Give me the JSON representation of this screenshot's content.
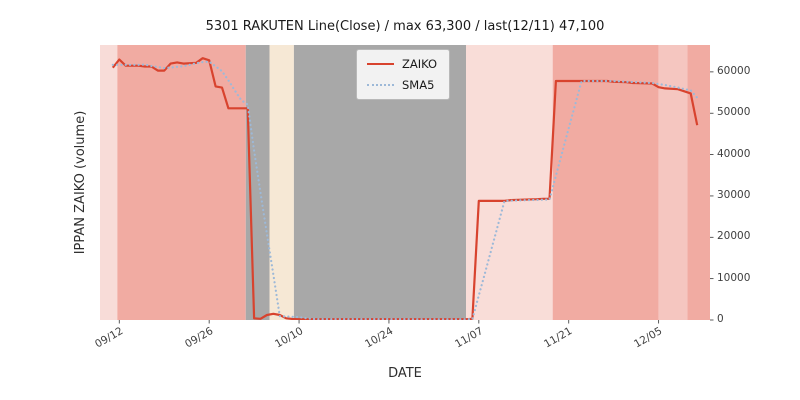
{
  "chart_data": {
    "type": "line",
    "title": "5301 RAKUTEN Line(Close) / max 63,300 / last(12/11) 47,100",
    "xlabel": "DATE",
    "ylabel": "IPPAN ZAIKO (volume)",
    "x_tick_labels": [
      "09/12",
      "09/26",
      "10/10",
      "10/24",
      "11/07",
      "11/21",
      "12/05"
    ],
    "x_tick_days": [
      1,
      15,
      29,
      43,
      57,
      71,
      85
    ],
    "y_tick_labels": [
      "0",
      "10000",
      "20000",
      "30000",
      "40000",
      "50000",
      "60000"
    ],
    "y_tick_values": [
      0,
      10000,
      20000,
      30000,
      40000,
      50000,
      60000
    ],
    "x_domain": [
      -2,
      93
    ],
    "x_start_date": "09/11",
    "ylim": [
      0,
      66500
    ],
    "max_value": 63300,
    "last": {
      "date": "12/11",
      "value": 47100
    },
    "legend": {
      "position": "upper center",
      "entries": [
        "ZAIKO",
        "SMA5"
      ]
    },
    "colors": {
      "zaiko_line": "#d8432e",
      "sma5_line": "#9db9d8",
      "band_salmon": "#f1aba2",
      "band_light_pink": "#f8dcd8",
      "band_pale_pink": "#f9ddd8",
      "band_mid_pink": "#f5c6c0",
      "band_gray": "#a8a8a8",
      "band_cream": "#f6e8d5",
      "tick_text": "#404040"
    },
    "background_bands": [
      {
        "start_day": -2,
        "end_day": 0.7,
        "color": "#f8dcd8"
      },
      {
        "start_day": 0.7,
        "end_day": 20.7,
        "color": "#f1aba2"
      },
      {
        "start_day": 20.7,
        "end_day": 24.4,
        "color": "#a8a8a8"
      },
      {
        "start_day": 24.4,
        "end_day": 28.2,
        "color": "#f6e8d5"
      },
      {
        "start_day": 28.2,
        "end_day": 55,
        "color": "#a8a8a8"
      },
      {
        "start_day": 55,
        "end_day": 68.5,
        "color": "#f9ddd8"
      },
      {
        "start_day": 68.5,
        "end_day": 85,
        "color": "#f1aba2"
      },
      {
        "start_day": 85,
        "end_day": 89.5,
        "color": "#f5c6c0"
      },
      {
        "start_day": 89.5,
        "end_day": 93,
        "color": "#f1aba2"
      }
    ],
    "series": [
      {
        "name": "ZAIKO",
        "style": "solid",
        "color": "#d8432e",
        "points": [
          [
            0,
            61000
          ],
          [
            1,
            63000
          ],
          [
            2,
            61500
          ],
          [
            4,
            61500
          ],
          [
            5,
            61300
          ],
          [
            6,
            61300
          ],
          [
            7,
            60300
          ],
          [
            8,
            60300
          ],
          [
            9,
            62000
          ],
          [
            10,
            62300
          ],
          [
            11,
            62000
          ],
          [
            13,
            62200
          ],
          [
            14,
            63300
          ],
          [
            15,
            62800
          ],
          [
            16,
            56500
          ],
          [
            17,
            56200
          ],
          [
            18,
            51200
          ],
          [
            21,
            51200
          ],
          [
            22,
            400
          ],
          [
            23,
            300
          ],
          [
            24,
            1200
          ],
          [
            25,
            1500
          ],
          [
            26,
            1200
          ],
          [
            27,
            400
          ],
          [
            28,
            250
          ],
          [
            29,
            200
          ],
          [
            55,
            200
          ],
          [
            56,
            300
          ],
          [
            57,
            28800
          ],
          [
            61,
            28800
          ],
          [
            62,
            29000
          ],
          [
            66,
            29200
          ],
          [
            67,
            29300
          ],
          [
            68,
            29300
          ],
          [
            69,
            57800
          ],
          [
            77,
            57800
          ],
          [
            78,
            57600
          ],
          [
            80,
            57500
          ],
          [
            81,
            57300
          ],
          [
            84,
            57200
          ],
          [
            85,
            56300
          ],
          [
            86,
            56000
          ],
          [
            88,
            55800
          ],
          [
            89,
            55300
          ],
          [
            90,
            54800
          ],
          [
            91,
            47100
          ]
        ]
      },
      {
        "name": "SMA5",
        "style": "dotted",
        "color": "#9db9d8",
        "points": [
          [
            0,
            61700
          ],
          [
            4,
            61700
          ],
          [
            5,
            61760
          ],
          [
            6,
            61420
          ],
          [
            7,
            61180
          ],
          [
            8,
            60940
          ],
          [
            9,
            61040
          ],
          [
            10,
            61240
          ],
          [
            11,
            61380
          ],
          [
            12,
            61720
          ],
          [
            13,
            62100
          ],
          [
            14,
            62360
          ],
          [
            15,
            62460
          ],
          [
            16,
            61360
          ],
          [
            17,
            60160
          ],
          [
            18,
            57960
          ],
          [
            19,
            55500
          ],
          [
            20,
            53140
          ],
          [
            21,
            52080
          ],
          [
            22,
            40960
          ],
          [
            23,
            30780
          ],
          [
            24,
            20820
          ],
          [
            25,
            10920
          ],
          [
            26,
            920
          ],
          [
            29,
            710
          ],
          [
            30,
            450
          ],
          [
            31,
            250
          ],
          [
            32,
            210
          ],
          [
            55,
            200
          ],
          [
            56,
            220
          ],
          [
            57,
            5920
          ],
          [
            58,
            11640
          ],
          [
            59,
            17360
          ],
          [
            60,
            23080
          ],
          [
            61,
            28800
          ],
          [
            62,
            28840
          ],
          [
            67,
            29100
          ],
          [
            68,
            29140
          ],
          [
            69,
            34860
          ],
          [
            70,
            40620
          ],
          [
            71,
            46380
          ],
          [
            72,
            52100
          ],
          [
            73,
            57800
          ],
          [
            77,
            57800
          ],
          [
            78,
            57760
          ],
          [
            81,
            57540
          ],
          [
            84,
            57320
          ],
          [
            85,
            57080
          ],
          [
            86,
            56820
          ],
          [
            87,
            56520
          ],
          [
            88,
            56220
          ],
          [
            89,
            55840
          ],
          [
            90,
            55540
          ],
          [
            91,
            53760
          ]
        ]
      }
    ]
  }
}
